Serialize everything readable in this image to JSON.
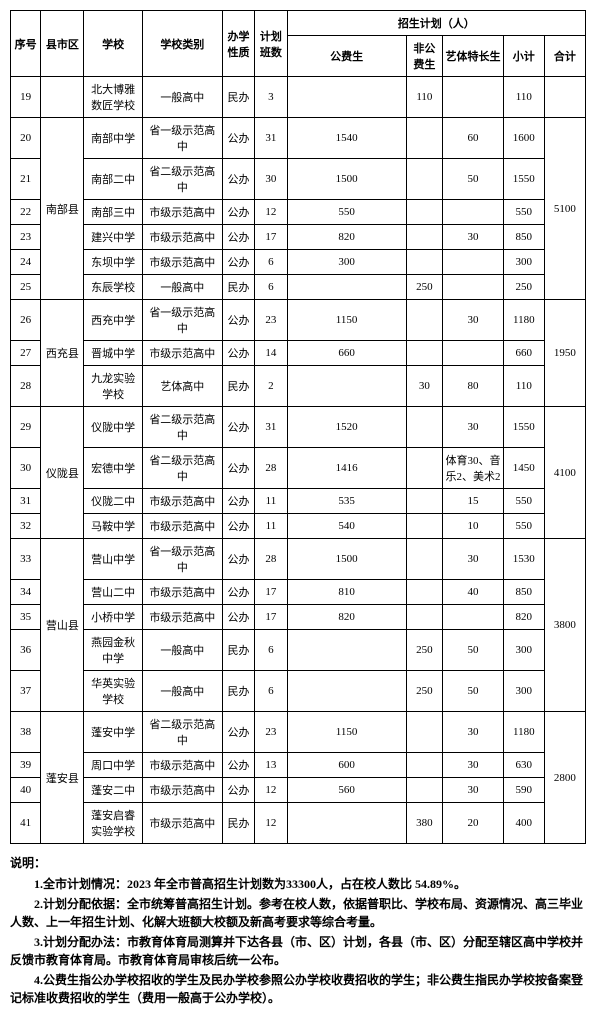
{
  "header": {
    "seq": "序号",
    "county": "县市区",
    "school": "学校",
    "type": "学校类别",
    "nature": "办学性质",
    "classes": "计划班数",
    "plan_group": "招生计划（人）",
    "public_students": "公费生",
    "nonpublic_students": "非公费生",
    "arts_students": "艺体特长生",
    "subtotal": "小计",
    "total": "合计"
  },
  "rows": [
    {
      "seq": "19",
      "county": "",
      "school": "北大博雅数匠学校",
      "type": "一般高中",
      "nature": "民办",
      "classes": "3",
      "pub": "",
      "nonpub": "110",
      "arts": "",
      "sub": "110",
      "total": ""
    },
    {
      "seq": "20",
      "county": "南部县",
      "county_rowspan": 6,
      "school": "南部中学",
      "type": "省一级示范高中",
      "nature": "公办",
      "classes": "31",
      "pub": "1540",
      "nonpub": "",
      "arts": "60",
      "sub": "1600",
      "total": "5100",
      "total_rowspan": 6
    },
    {
      "seq": "21",
      "school": "南部二中",
      "type": "省二级示范高中",
      "nature": "公办",
      "classes": "30",
      "pub": "1500",
      "nonpub": "",
      "arts": "50",
      "sub": "1550"
    },
    {
      "seq": "22",
      "school": "南部三中",
      "type": "市级示范高中",
      "nature": "公办",
      "classes": "12",
      "pub": "550",
      "nonpub": "",
      "arts": "",
      "sub": "550"
    },
    {
      "seq": "23",
      "school": "建兴中学",
      "type": "市级示范高中",
      "nature": "公办",
      "classes": "17",
      "pub": "820",
      "nonpub": "",
      "arts": "30",
      "sub": "850"
    },
    {
      "seq": "24",
      "school": "东坝中学",
      "type": "市级示范高中",
      "nature": "公办",
      "classes": "6",
      "pub": "300",
      "nonpub": "",
      "arts": "",
      "sub": "300"
    },
    {
      "seq": "25",
      "school": "东辰学校",
      "type": "一般高中",
      "nature": "民办",
      "classes": "6",
      "pub": "",
      "nonpub": "250",
      "arts": "",
      "sub": "250"
    },
    {
      "seq": "26",
      "county": "西充县",
      "county_rowspan": 3,
      "school": "西充中学",
      "type": "省一级示范高中",
      "nature": "公办",
      "classes": "23",
      "pub": "1150",
      "nonpub": "",
      "arts": "30",
      "sub": "1180",
      "total": "1950",
      "total_rowspan": 3
    },
    {
      "seq": "27",
      "school": "晋城中学",
      "type": "市级示范高中",
      "nature": "公办",
      "classes": "14",
      "pub": "660",
      "nonpub": "",
      "arts": "",
      "sub": "660"
    },
    {
      "seq": "28",
      "school": "九龙实验学校",
      "type": "艺体高中",
      "nature": "民办",
      "classes": "2",
      "pub": "",
      "nonpub": "30",
      "arts": "80",
      "sub": "110"
    },
    {
      "seq": "29",
      "county": "仪陇县",
      "county_rowspan": 4,
      "school": "仪陇中学",
      "type": "省二级示范高中",
      "nature": "公办",
      "classes": "31",
      "pub": "1520",
      "nonpub": "",
      "arts": "30",
      "sub": "1550",
      "total": "4100",
      "total_rowspan": 4
    },
    {
      "seq": "30",
      "school": "宏德中学",
      "type": "省二级示范高中",
      "nature": "公办",
      "classes": "28",
      "pub": "1416",
      "nonpub": "",
      "arts": "体育30、音乐2、美术2",
      "sub": "1450"
    },
    {
      "seq": "31",
      "school": "仪陇二中",
      "type": "市级示范高中",
      "nature": "公办",
      "classes": "11",
      "pub": "535",
      "nonpub": "",
      "arts": "15",
      "sub": "550"
    },
    {
      "seq": "32",
      "school": "马鞍中学",
      "type": "市级示范高中",
      "nature": "公办",
      "classes": "11",
      "pub": "540",
      "nonpub": "",
      "arts": "10",
      "sub": "550"
    },
    {
      "seq": "33",
      "county": "营山县",
      "county_rowspan": 5,
      "school": "营山中学",
      "type": "省一级示范高中",
      "nature": "公办",
      "classes": "28",
      "pub": "1500",
      "nonpub": "",
      "arts": "30",
      "sub": "1530",
      "total": "3800",
      "total_rowspan": 5
    },
    {
      "seq": "34",
      "school": "营山二中",
      "type": "市级示范高中",
      "nature": "公办",
      "classes": "17",
      "pub": "810",
      "nonpub": "",
      "arts": "40",
      "sub": "850"
    },
    {
      "seq": "35",
      "school": "小桥中学",
      "type": "市级示范高中",
      "nature": "公办",
      "classes": "17",
      "pub": "820",
      "nonpub": "",
      "arts": "",
      "sub": "820"
    },
    {
      "seq": "36",
      "school": "燕园金秋中学",
      "type": "一般高中",
      "nature": "民办",
      "classes": "6",
      "pub": "",
      "nonpub": "250",
      "arts": "50",
      "sub": "300"
    },
    {
      "seq": "37",
      "school": "华英实验学校",
      "type": "一般高中",
      "nature": "民办",
      "classes": "6",
      "pub": "",
      "nonpub": "250",
      "arts": "50",
      "sub": "300"
    },
    {
      "seq": "38",
      "county": "蓬安县",
      "county_rowspan": 4,
      "school": "蓬安中学",
      "type": "省二级示范高中",
      "nature": "公办",
      "classes": "23",
      "pub": "1150",
      "nonpub": "",
      "arts": "30",
      "sub": "1180",
      "total": "2800",
      "total_rowspan": 4
    },
    {
      "seq": "39",
      "school": "周口中学",
      "type": "市级示范高中",
      "nature": "公办",
      "classes": "13",
      "pub": "600",
      "nonpub": "",
      "arts": "30",
      "sub": "630"
    },
    {
      "seq": "40",
      "school": "蓬安二中",
      "type": "市级示范高中",
      "nature": "公办",
      "classes": "12",
      "pub": "560",
      "nonpub": "",
      "arts": "30",
      "sub": "590"
    },
    {
      "seq": "41",
      "school": "蓬安启睿实验学校",
      "type": "市级示范高中",
      "nature": "民办",
      "classes": "12",
      "pub": "",
      "nonpub": "380",
      "arts": "20",
      "sub": "400"
    }
  ],
  "notes": {
    "title": "说明：",
    "n1": "1.全市计划情况：2023 年全市普高招生计划数为33300人，占在校人数比 54.89%。",
    "n2": "2.计划分配依据：全市统筹普高招生计划。参考在校人数，依据普职比、学校布局、资源情况、高三毕业人数、上一年招生计划、化解大班额大校额及新高考要求等综合考量。",
    "n3": "3.计划分配办法：市教育体育局测算并下达各县（市、区）计划，各县（市、区）分配至辖区高中学校并反馈市教育体育局。市教育体育局审核后统一公布。",
    "n4": "4.公费生指公办学校招收的学生及民办学校参照公办学校收费招收的学生；非公费生指民办学校按备案登记标准收费招收的学生（费用一般高于公办学校）。"
  }
}
